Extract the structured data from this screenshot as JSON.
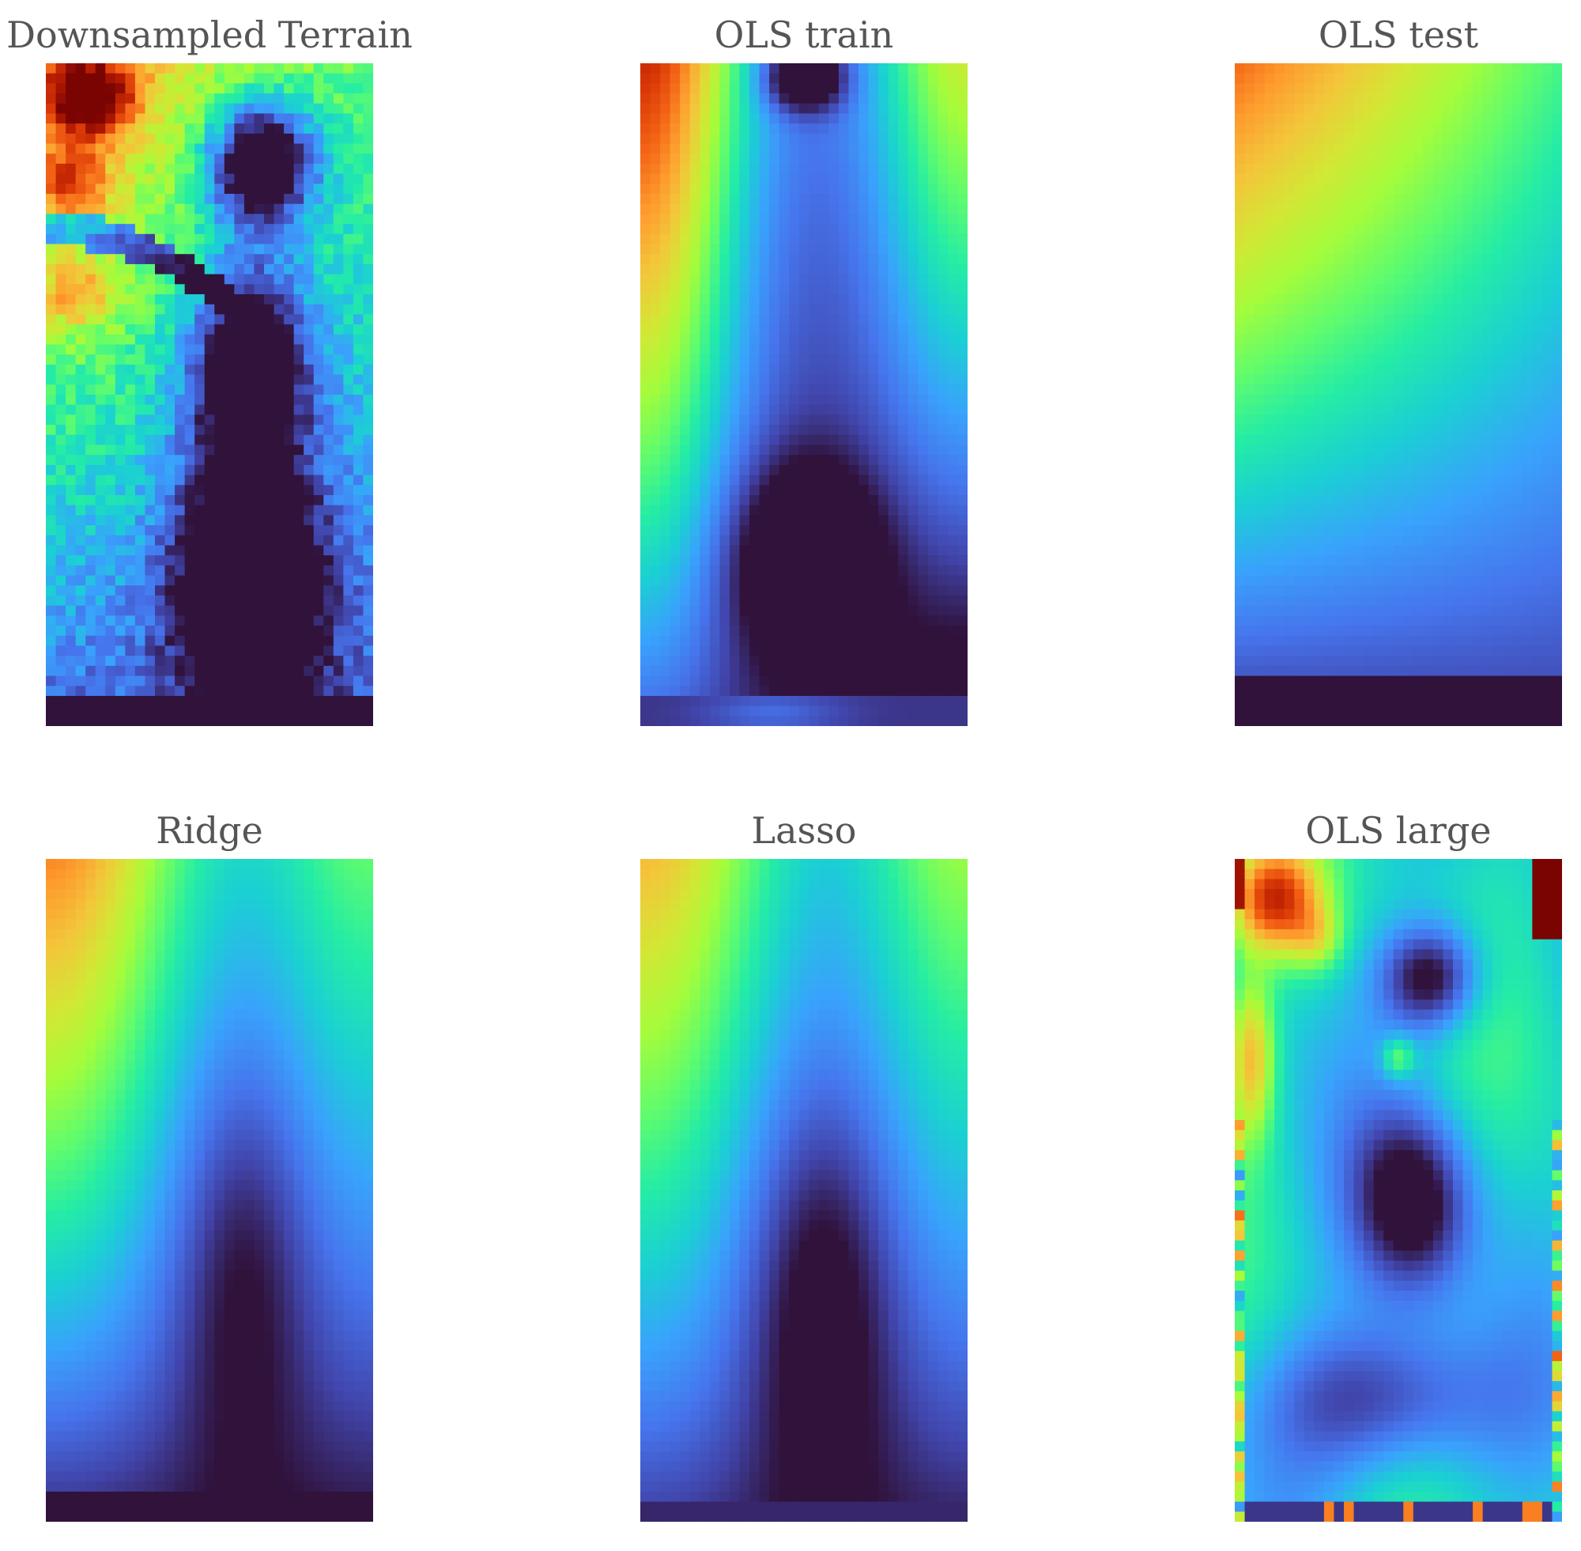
{
  "figure": {
    "colormap": "turbo",
    "colormap_stops": [
      "#30123b",
      "#4145ab",
      "#4675ed",
      "#39a2fc",
      "#1bcfd4",
      "#24eca6",
      "#61fc6c",
      "#a4fc3b",
      "#d1e834",
      "#f3c63a",
      "#fe9b2d",
      "#f36315",
      "#d93806",
      "#b11901",
      "#7a0402"
    ],
    "grid_resolution": {
      "cols": 33,
      "rows": 66
    },
    "axes_visible": false
  },
  "chart_data": [
    {
      "type": "heatmap",
      "title": "Downsampled Terrain",
      "pattern": "terrain"
    },
    {
      "type": "heatmap",
      "title": "OLS train",
      "pattern": "ols_train"
    },
    {
      "type": "heatmap",
      "title": "OLS test",
      "pattern": "ols_test"
    },
    {
      "type": "heatmap",
      "title": "Ridge",
      "pattern": "ridge"
    },
    {
      "type": "heatmap",
      "title": "Lasso",
      "pattern": "lasso"
    },
    {
      "type": "heatmap",
      "title": "OLS large",
      "pattern": "ols_large"
    }
  ]
}
